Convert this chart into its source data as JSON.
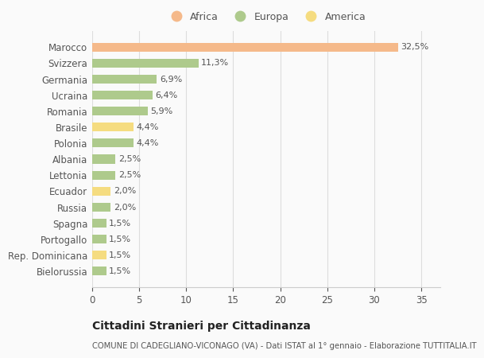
{
  "countries": [
    "Marocco",
    "Svizzera",
    "Germania",
    "Ucraina",
    "Romania",
    "Brasile",
    "Polonia",
    "Albania",
    "Lettonia",
    "Ecuador",
    "Russia",
    "Spagna",
    "Portogallo",
    "Rep. Dominicana",
    "Bielorussia"
  ],
  "values": [
    32.5,
    11.3,
    6.9,
    6.4,
    5.9,
    4.4,
    4.4,
    2.5,
    2.5,
    2.0,
    2.0,
    1.5,
    1.5,
    1.5,
    1.5
  ],
  "labels": [
    "32,5%",
    "11,3%",
    "6,9%",
    "6,4%",
    "5,9%",
    "4,4%",
    "4,4%",
    "2,5%",
    "2,5%",
    "2,0%",
    "2,0%",
    "1,5%",
    "1,5%",
    "1,5%",
    "1,5%"
  ],
  "continent": [
    "Africa",
    "Europa",
    "Europa",
    "Europa",
    "Europa",
    "America",
    "Europa",
    "Europa",
    "Europa",
    "America",
    "Europa",
    "Europa",
    "Europa",
    "America",
    "Europa"
  ],
  "colors": {
    "Africa": "#F5B98A",
    "Europa": "#AECA8C",
    "America": "#F5DC80"
  },
  "bg_color": "#FAFAFA",
  "title": "Cittadini Stranieri per Cittadinanza",
  "subtitle": "COMUNE DI CADEGLIANO-VICONAGO (VA) - Dati ISTAT al 1° gennaio - Elaborazione TUTTITALIA.IT",
  "xlim": [
    0,
    37
  ],
  "xticks": [
    0,
    5,
    10,
    15,
    20,
    25,
    30,
    35
  ],
  "legend_order": [
    "Africa",
    "Europa",
    "America"
  ]
}
